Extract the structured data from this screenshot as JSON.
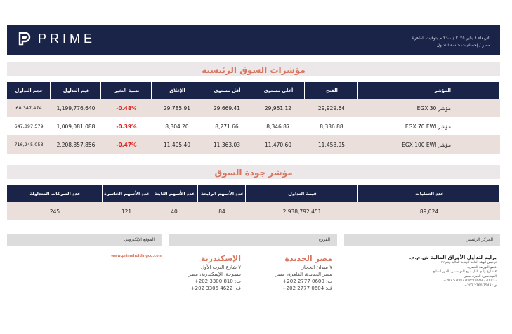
{
  "header": {
    "logo_text": "PRIME",
    "date_line": "الأربعاء ٨ يناير ٢٠٢٥ / ٣:٠٠ م بتوقيت القاهرة",
    "subtitle": "مصر / إحصائيات جلسة التداول"
  },
  "main_indices": {
    "title": "مؤشرات السوق الرئيسية",
    "columns": [
      "المؤشر",
      "الفتح",
      "أعلى مستوى",
      "أقل مستوى",
      "الإغلاق",
      "نسبة التغير",
      "قيم التداول",
      "حجم التداول"
    ],
    "rows": [
      {
        "index": "مؤشر EGX 30",
        "open": "29,929.64",
        "high": "29,951.12",
        "low": "29,669.41",
        "close": "29,785.91",
        "change": "-0.48%",
        "value": "1,199,776,640",
        "volume": "68,347,474"
      },
      {
        "index": "مؤشر EGX 70 EWI",
        "open": "8,336.88",
        "high": "8,346.87",
        "low": "8,271.66",
        "close": "8,304.20",
        "change": "-0.39%",
        "value": "1,009,081,088",
        "volume": "647,897,579"
      },
      {
        "index": "مؤشر EGX 100 EWI",
        "open": "11,458.95",
        "high": "11,470.60",
        "low": "11,363.03",
        "close": "11,405.40",
        "change": "-0.47%",
        "value": "2,208,857,856",
        "volume": "716,245,053"
      }
    ]
  },
  "market_quality": {
    "title": "مؤشر جودة السوق",
    "columns": [
      "عدد العمليات",
      "قيمة التداول",
      "عدد الأسهم الرابحة",
      "عدد الأسهم الثابتة",
      "عدد الأسهم الخاسرة",
      "عدد الشركات المتداولة"
    ],
    "values": [
      "89,024",
      "2,938,792,451",
      "84",
      "40",
      "121",
      "245"
    ]
  },
  "footer": {
    "website_label": "الموقع الإلكتروني",
    "website": "www.primeholdingco.com",
    "branches_label": "الفروع",
    "hq_label": "المركز الرئيسي",
    "branches": [
      {
        "name": "الإسكندرية",
        "lines": [
          "٧ شارع البرت الأول",
          "سموحة، الإسكندرية، مصر",
          "ت: 810 3300 202+",
          "ف: 4622 3305 202+"
        ]
      },
      {
        "name": "مصر الجديدة",
        "lines": [
          "٧ ميدان الحجاز",
          "مصر الجديدة، القاهرة، مصر",
          "ت: 0600 2777 202+",
          "ف: 0604 2777 202+"
        ]
      }
    ],
    "hq": {
      "name": "برايم لتداول الأوراق المالية ش.م.م.",
      "lines": [
        "ترخيص الهيئة العامة للرقابة المالية رقم ٧٢",
        "عضو البورصة المصرية",
        "٢ شارع وادي النيل، برج المهندسين، الدور السابع",
        "المهندسين، الجيزة، مصر",
        "ت: 3300 5700/770/650/649 202+",
        "ف: 7543 2760 202+"
      ]
    }
  }
}
